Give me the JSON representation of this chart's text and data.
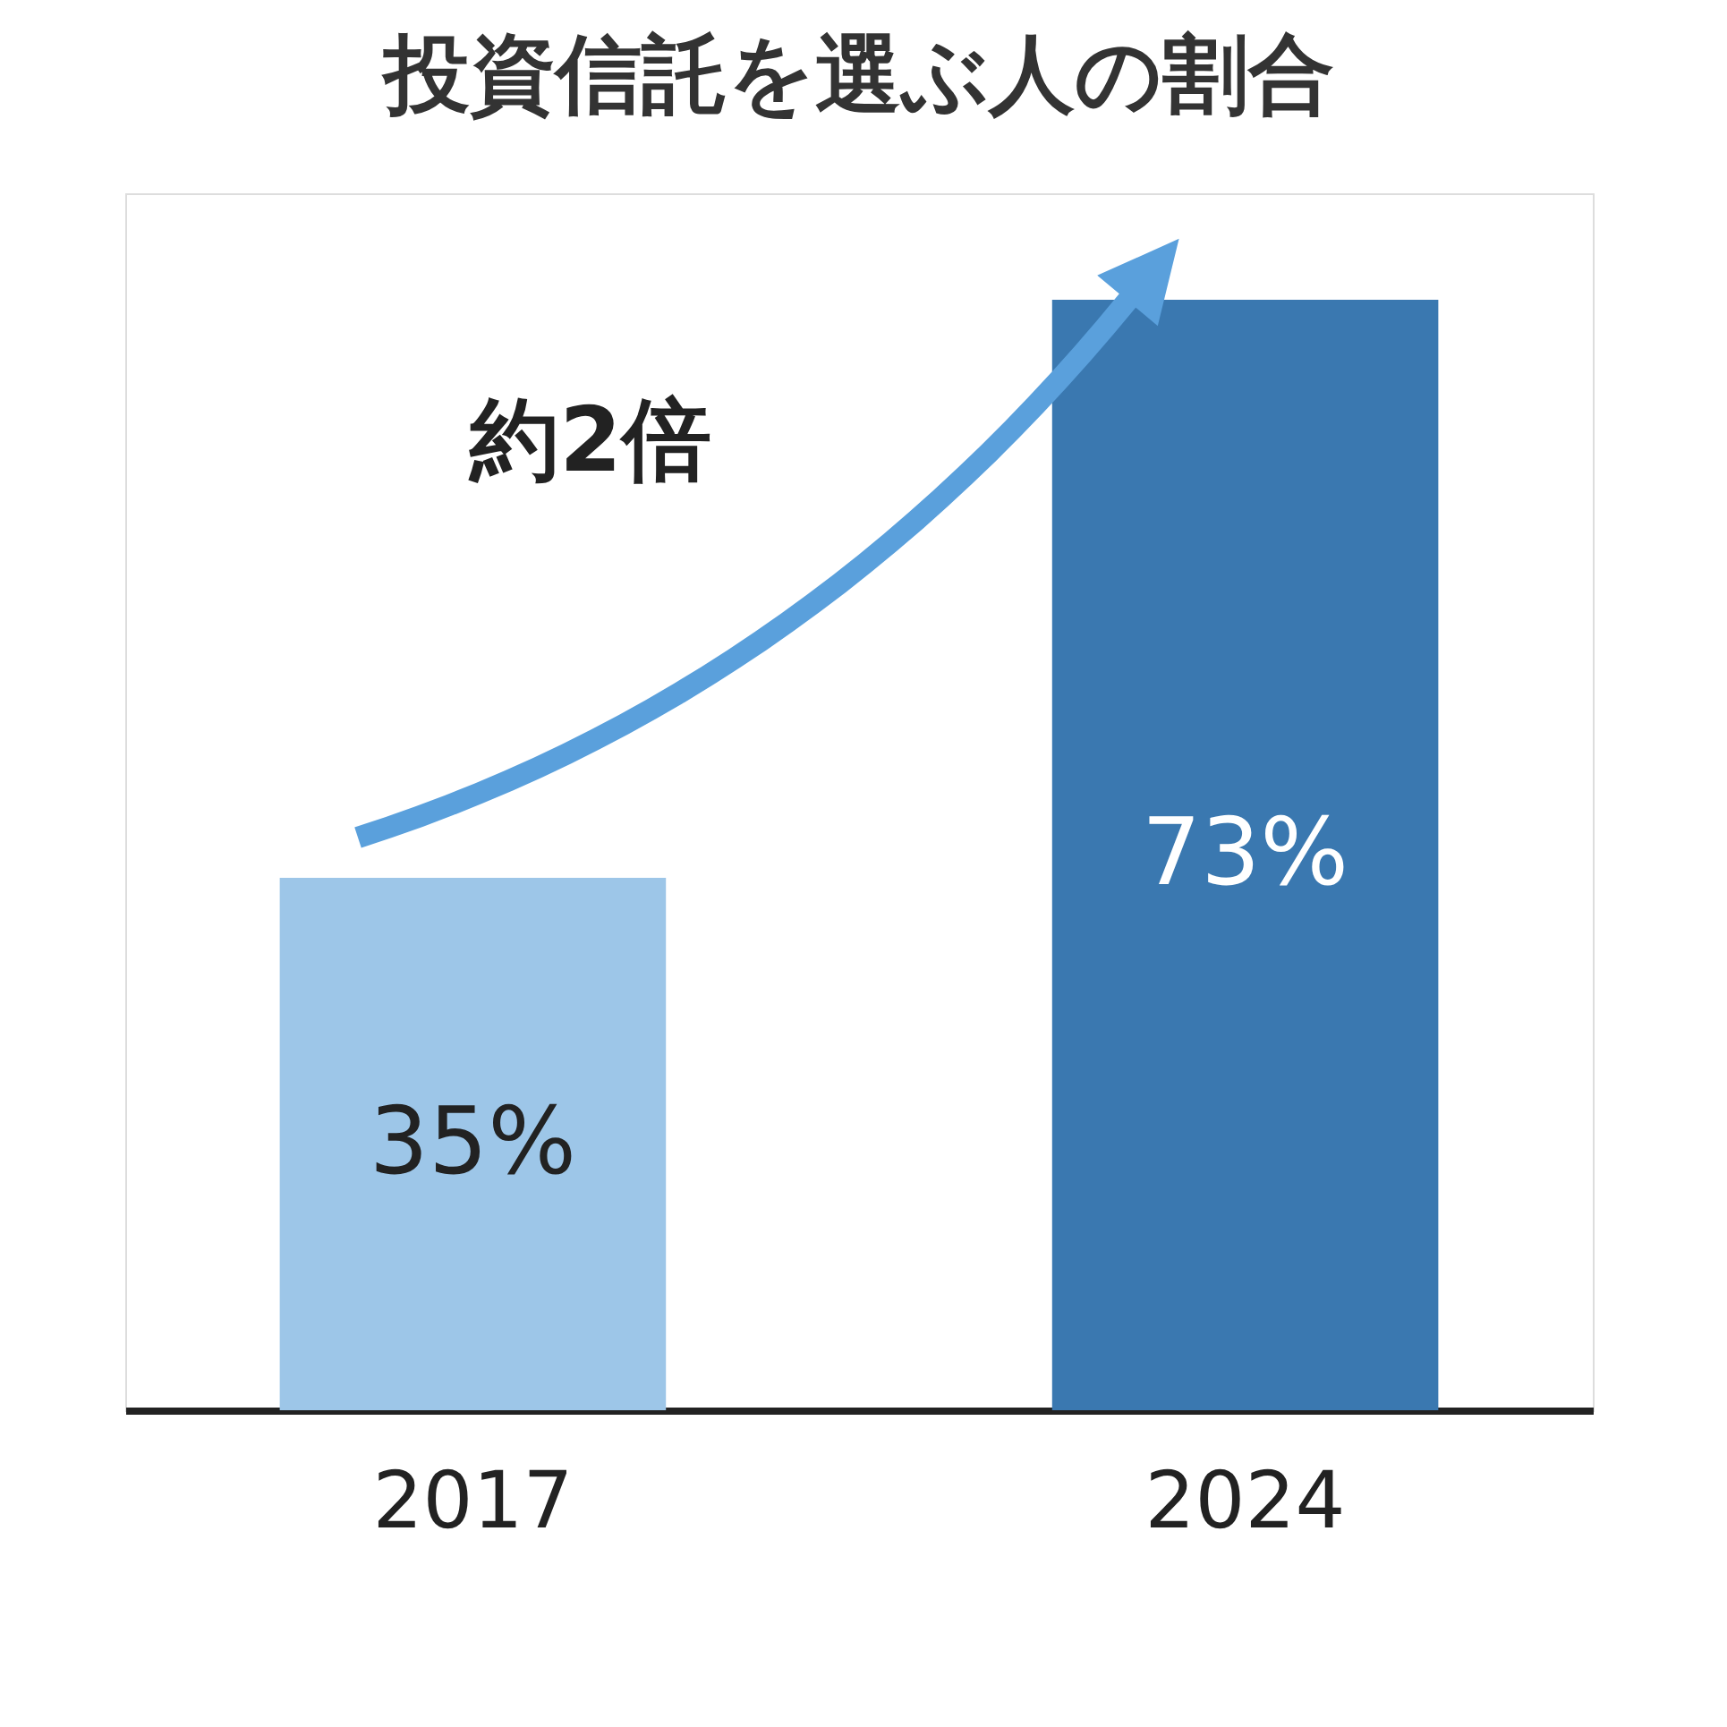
{
  "chart_data": {
    "type": "bar",
    "title": "投資信託を選ぶ人の割合",
    "categories": [
      "2017",
      "2024"
    ],
    "values": [
      35,
      73
    ],
    "colors": [
      "#9dc6e8",
      "#3a78b0"
    ],
    "value_labels": [
      "35%",
      "73%"
    ],
    "annotations": [
      "約2倍"
    ],
    "grid": false,
    "legend": false
  }
}
